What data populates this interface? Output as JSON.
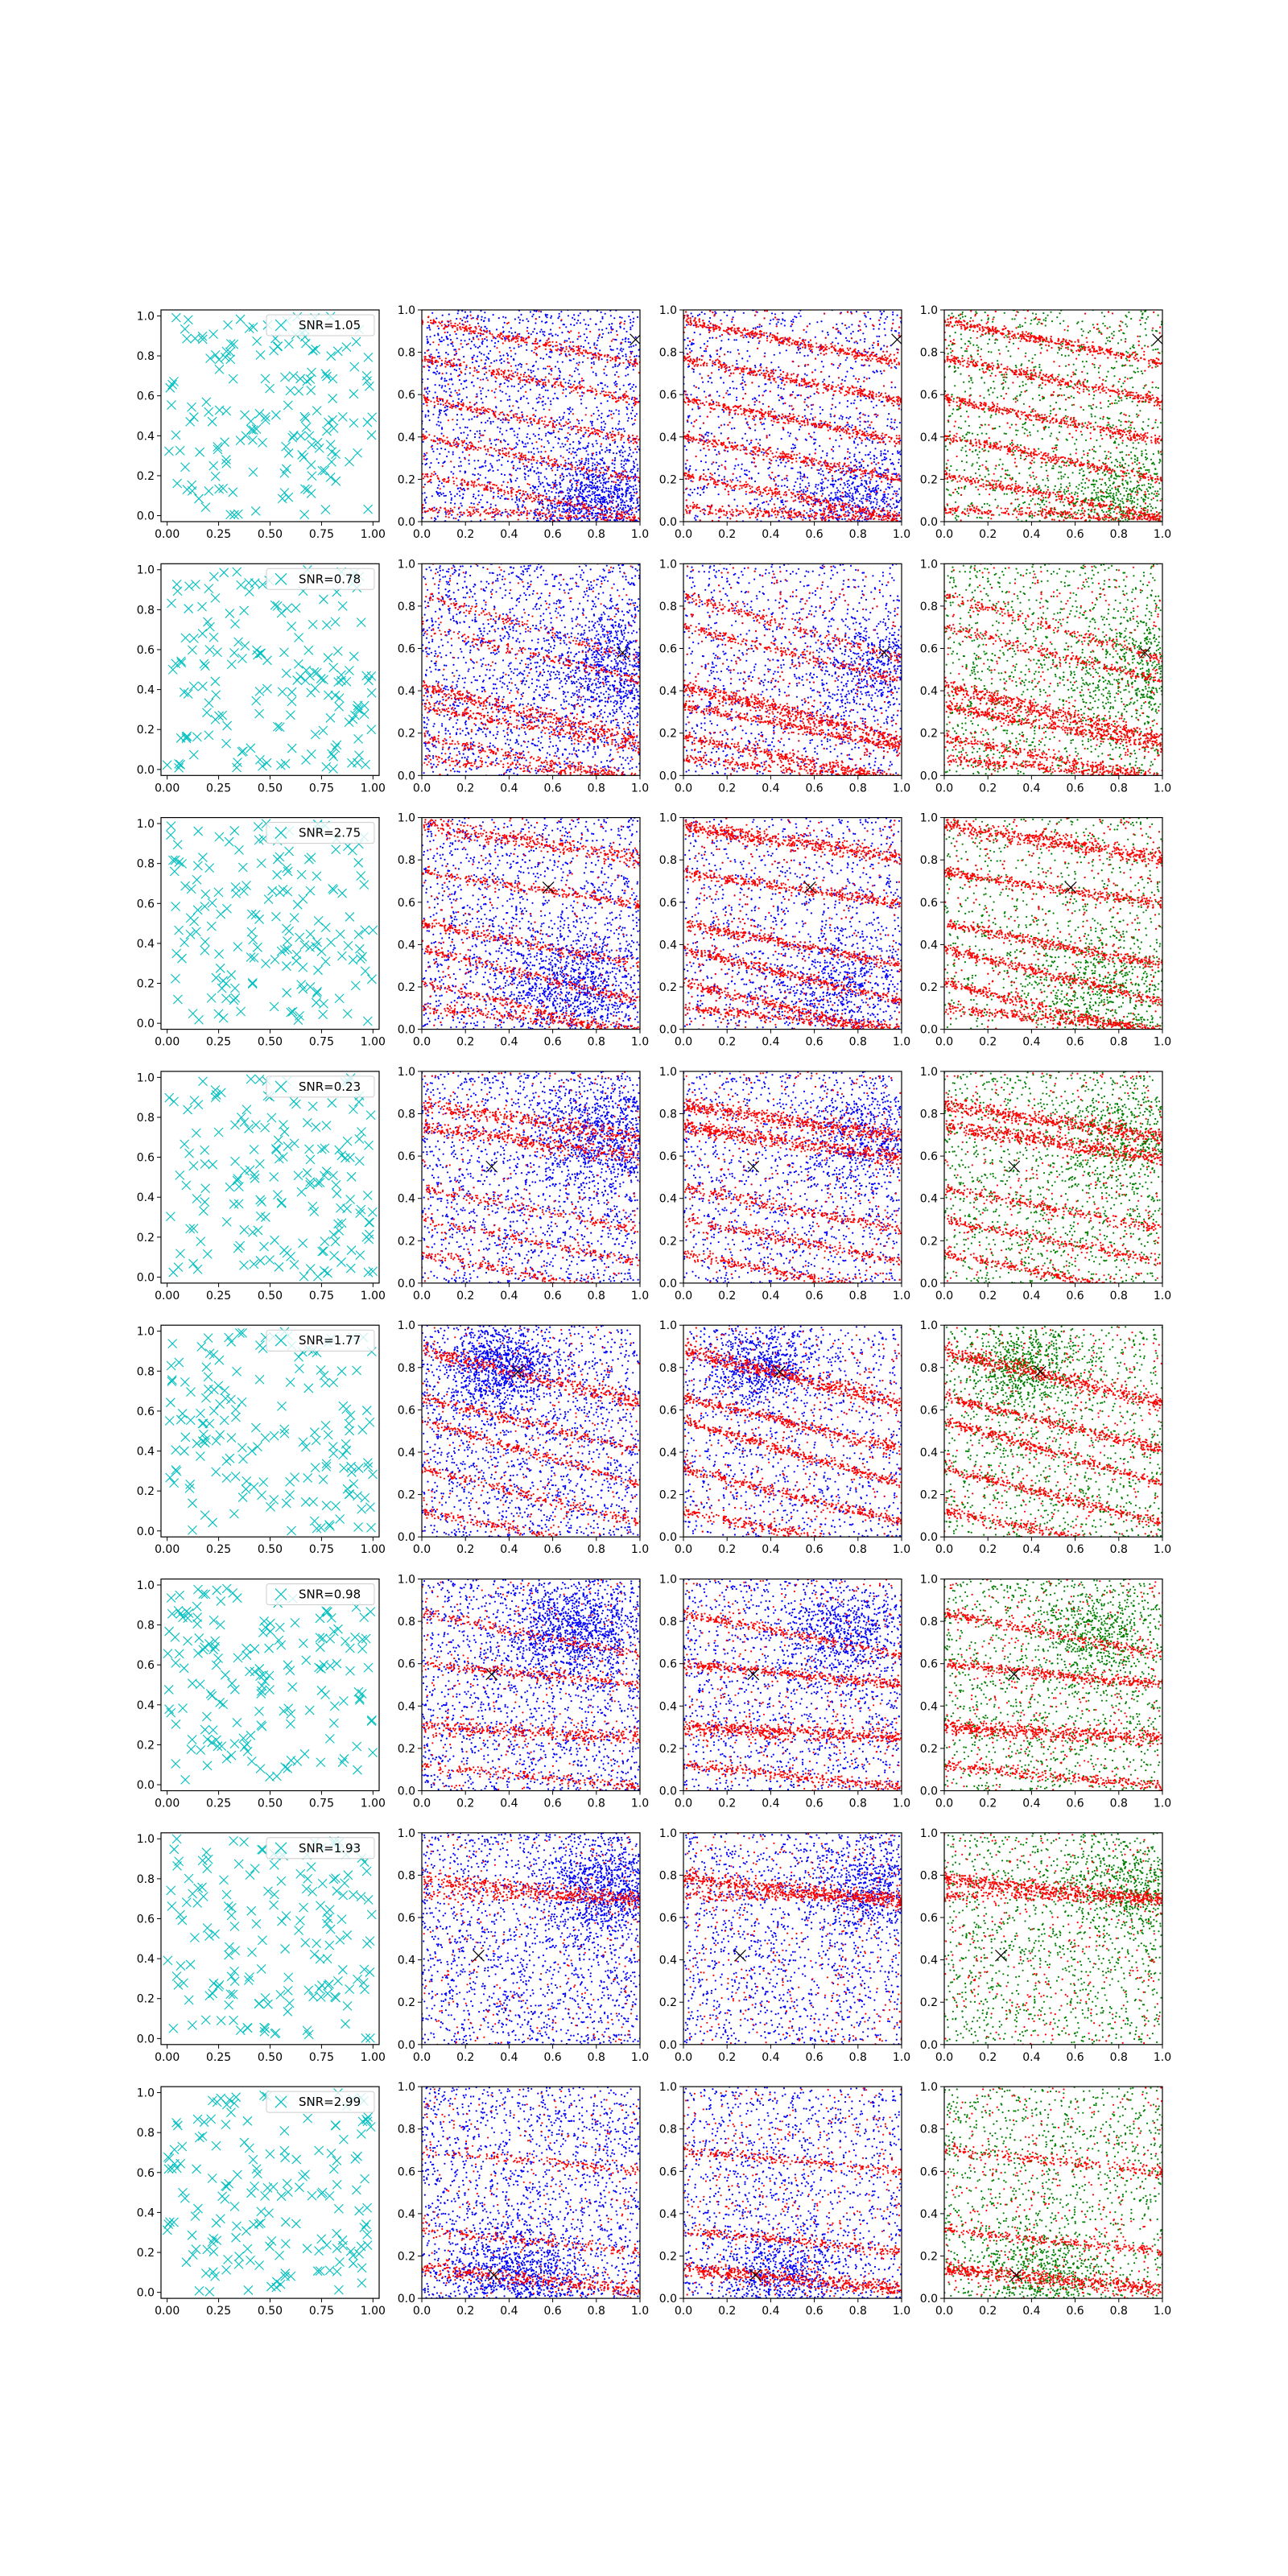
{
  "figure": {
    "rows": 8,
    "cols": 4,
    "colors": {
      "cyan": "#00bfbf",
      "red": "#ff0000",
      "blue": "#0000ff",
      "green": "#008000",
      "cross": "#000000",
      "axis": "#000000"
    }
  },
  "chart_data": [
    {
      "row": 0,
      "type": "scatter",
      "legend": "SNR=1.05",
      "cross": [
        0.98,
        0.86
      ],
      "bands": [
        {
          "y0": 0.95,
          "slope": -0.2,
          "strength": 1.0
        },
        {
          "y0": 0.77,
          "slope": -0.2,
          "strength": 0.9
        },
        {
          "y0": 0.58,
          "slope": -0.2,
          "strength": 0.9
        },
        {
          "y0": 0.4,
          "slope": -0.2,
          "strength": 0.8
        },
        {
          "y0": 0.22,
          "slope": -0.2,
          "strength": 0.8
        },
        {
          "y0": 0.06,
          "slope": -0.05,
          "strength": 0.7
        }
      ],
      "blob": {
        "cx": 0.8,
        "cy": 0.1,
        "r": 0.25
      }
    },
    {
      "row": 1,
      "type": "scatter",
      "legend": "SNR=0.78",
      "cross": [
        0.92,
        0.58
      ],
      "bands": [
        {
          "y0": 0.85,
          "slope": -0.3,
          "strength": 0.5
        },
        {
          "y0": 0.7,
          "slope": -0.25,
          "strength": 0.6
        },
        {
          "y0": 0.42,
          "slope": -0.25,
          "strength": 1.3
        },
        {
          "y0": 0.33,
          "slope": -0.2,
          "strength": 0.9
        },
        {
          "y0": 0.18,
          "slope": -0.2,
          "strength": 0.8
        },
        {
          "y0": 0.08,
          "slope": -0.1,
          "strength": 0.7
        }
      ],
      "blob": {
        "cx": 0.9,
        "cy": 0.5,
        "r": 0.3
      }
    },
    {
      "row": 2,
      "type": "scatter",
      "legend": "SNR=2.75",
      "cross": [
        0.58,
        0.67
      ],
      "bands": [
        {
          "y0": 0.96,
          "slope": -0.15,
          "strength": 1.3
        },
        {
          "y0": 0.74,
          "slope": -0.15,
          "strength": 0.9
        },
        {
          "y0": 0.5,
          "slope": -0.2,
          "strength": 0.9
        },
        {
          "y0": 0.38,
          "slope": -0.25,
          "strength": 0.9
        },
        {
          "y0": 0.22,
          "slope": -0.25,
          "strength": 0.8
        },
        {
          "y0": 0.1,
          "slope": -0.1,
          "strength": 0.7
        }
      ],
      "blob": {
        "cx": 0.7,
        "cy": 0.2,
        "r": 0.3
      }
    },
    {
      "row": 3,
      "type": "scatter",
      "legend": "SNR=0.23",
      "cross": [
        0.32,
        0.55
      ],
      "bands": [
        {
          "y0": 0.84,
          "slope": -0.15,
          "strength": 1.3
        },
        {
          "y0": 0.74,
          "slope": -0.15,
          "strength": 1.3
        },
        {
          "y0": 0.45,
          "slope": -0.2,
          "strength": 0.6
        },
        {
          "y0": 0.3,
          "slope": -0.2,
          "strength": 0.6
        },
        {
          "y0": 0.14,
          "slope": -0.2,
          "strength": 0.7
        }
      ],
      "blob": {
        "cx": 0.85,
        "cy": 0.7,
        "r": 0.3
      }
    },
    {
      "row": 4,
      "type": "scatter",
      "legend": "SNR=1.77",
      "cross": [
        0.44,
        0.78
      ],
      "bands": [
        {
          "y0": 0.88,
          "slope": -0.25,
          "strength": 1.3
        },
        {
          "y0": 0.66,
          "slope": -0.25,
          "strength": 0.9
        },
        {
          "y0": 0.55,
          "slope": -0.3,
          "strength": 0.9
        },
        {
          "y0": 0.32,
          "slope": -0.25,
          "strength": 0.8
        },
        {
          "y0": 0.12,
          "slope": -0.2,
          "strength": 0.7
        }
      ],
      "blob": {
        "cx": 0.35,
        "cy": 0.8,
        "r": 0.2
      }
    },
    {
      "row": 5,
      "type": "scatter",
      "legend": "SNR=0.98",
      "cross": [
        0.32,
        0.55
      ],
      "bands": [
        {
          "y0": 0.84,
          "slope": -0.2,
          "strength": 0.7
        },
        {
          "y0": 0.6,
          "slope": -0.1,
          "strength": 0.9
        },
        {
          "y0": 0.3,
          "slope": -0.05,
          "strength": 1.3
        },
        {
          "y0": 0.12,
          "slope": -0.1,
          "strength": 0.7
        }
      ],
      "blob": {
        "cx": 0.7,
        "cy": 0.75,
        "r": 0.25
      }
    },
    {
      "row": 6,
      "type": "scatter",
      "legend": "SNR=1.93",
      "cross": [
        0.26,
        0.42
      ],
      "bands": [
        {
          "y0": 0.7,
          "slope": 0.0,
          "strength": 0.6
        },
        {
          "y0": 0.78,
          "slope": -0.1,
          "strength": 1.3
        }
      ],
      "blob": {
        "cx": 0.85,
        "cy": 0.75,
        "r": 0.25
      }
    },
    {
      "row": 7,
      "type": "scatter",
      "legend": "SNR=2.99",
      "cross": [
        0.33,
        0.11
      ],
      "bands": [
        {
          "y0": 0.7,
          "slope": -0.1,
          "strength": 0.5
        },
        {
          "y0": 0.32,
          "slope": -0.1,
          "strength": 0.6
        },
        {
          "y0": 0.14,
          "slope": -0.1,
          "strength": 1.3
        }
      ],
      "blob": {
        "cx": 0.45,
        "cy": 0.1,
        "r": 0.25
      }
    }
  ],
  "axes": {
    "xlim": [
      0,
      1
    ],
    "ylim": [
      0,
      1
    ],
    "first_col_xlim": [
      -0.03,
      1.03
    ],
    "first_col_ylim": [
      -0.03,
      1.03
    ],
    "first_col_xticks": [
      "0.00",
      "0.25",
      "0.50",
      "0.75",
      "1.00"
    ],
    "first_col_yticks": [
      "0.0",
      "0.2",
      "0.4",
      "0.6",
      "0.8",
      "1.0"
    ],
    "other_xticks": [
      "0.0",
      "0.2",
      "0.4",
      "0.6",
      "0.8",
      "1.0"
    ],
    "other_yticks": [
      "0.0",
      "0.2",
      "0.4",
      "0.6",
      "0.8",
      "1.0"
    ]
  }
}
